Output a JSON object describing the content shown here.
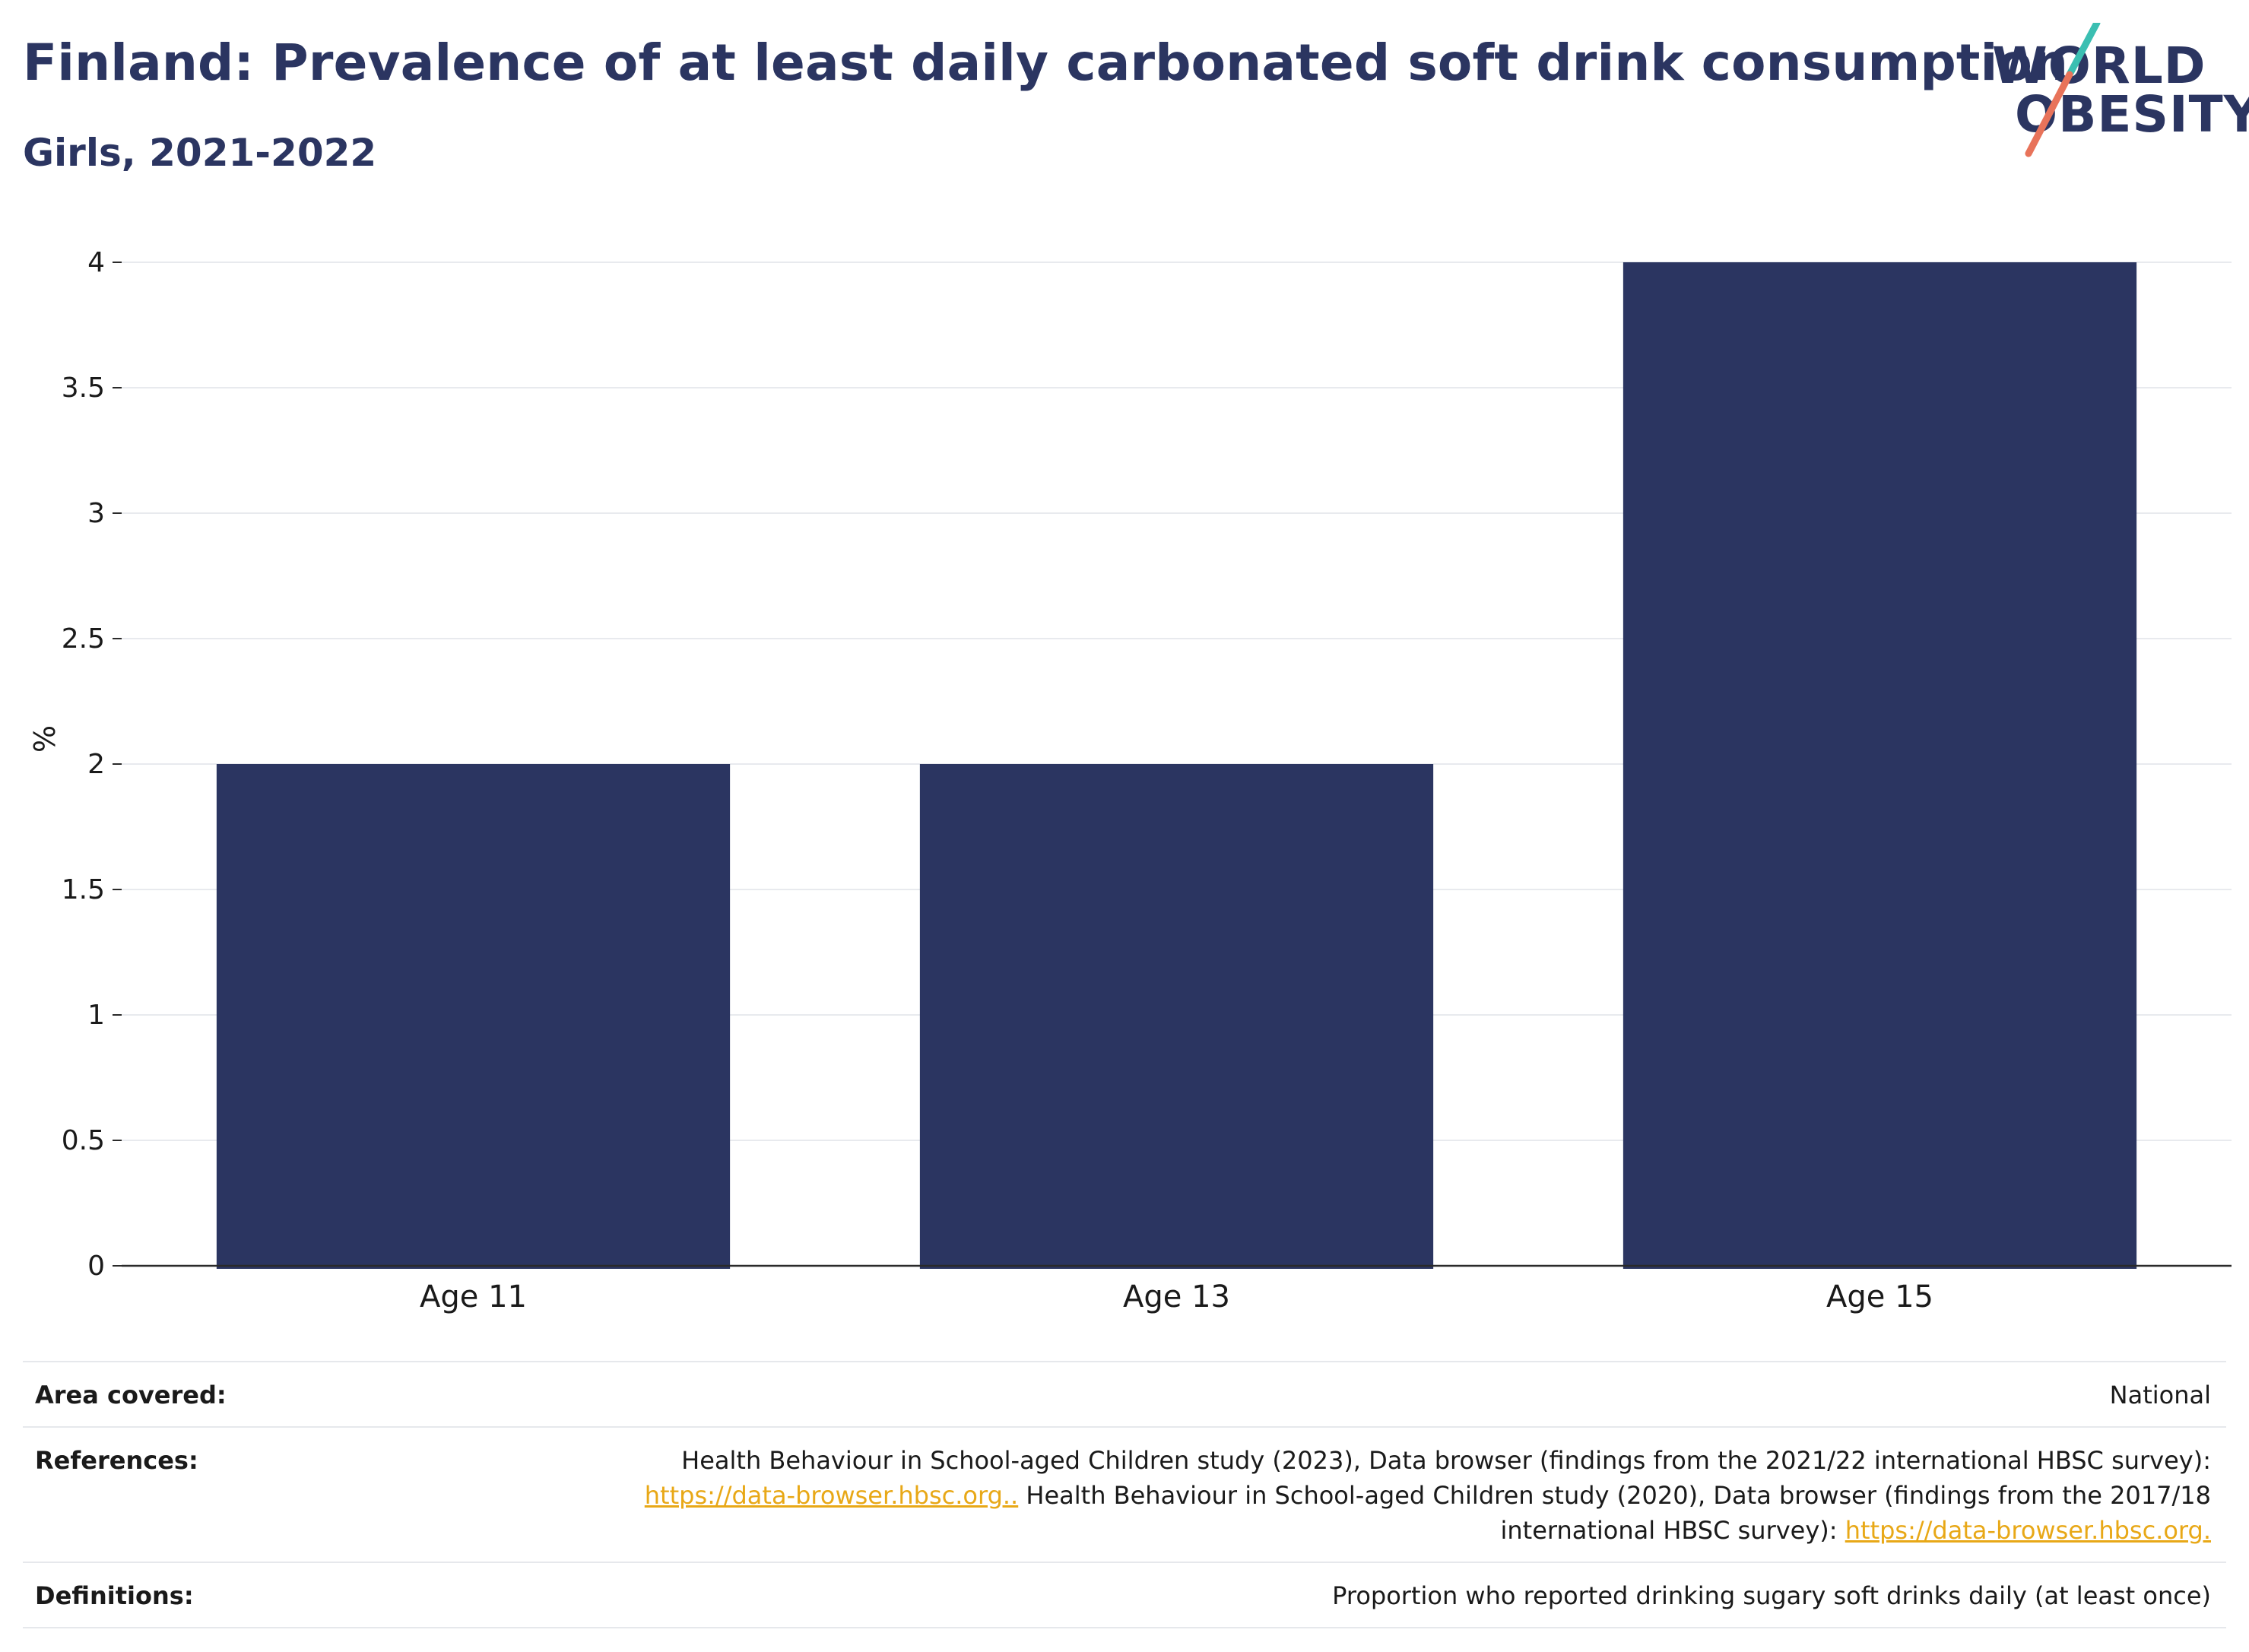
{
  "header": {
    "title": "Finland: Prevalence of at least daily carbonated soft drink consumption",
    "subtitle": "Girls, 2021-2022"
  },
  "logo": {
    "line1": "WORLD",
    "line2": "OBESITY",
    "slash_colors": [
      "#3bbfb2",
      "#e8735a"
    ],
    "text_color": "#2b3561"
  },
  "chart_data": {
    "type": "bar",
    "categories": [
      "Age 11",
      "Age 13",
      "Age 15"
    ],
    "values": [
      2,
      2,
      4
    ],
    "ylabel": "%",
    "ylim": [
      0,
      4
    ],
    "yticks": [
      0,
      0.5,
      1,
      1.5,
      2,
      2.5,
      3,
      3.5,
      4
    ],
    "ytick_labels": [
      "0",
      "0.5",
      "1",
      "1.5",
      "2",
      "2.5",
      "3",
      "3.5",
      "4"
    ],
    "bar_color": "#2b3561",
    "grid": true,
    "legend": "none"
  },
  "info": {
    "area_label": "Area covered:",
    "area_value": "National",
    "references_label": "References:",
    "ref_text_1": "Health Behaviour in School-aged Children study (2023), Data browser (findings from the 2021/22 international HBSC survey):",
    "ref_link_1": "https://data-browser.hbsc.org..",
    "ref_text_2": " Health Behaviour in School-aged Children study (2020), Data browser (findings from the 2017/18 international HBSC survey): ",
    "ref_link_2": "https://data-browser.hbsc.org.",
    "definitions_label": "Definitions:",
    "definitions_value": "Proportion who reported drinking sugary soft drinks daily (at least once)"
  }
}
